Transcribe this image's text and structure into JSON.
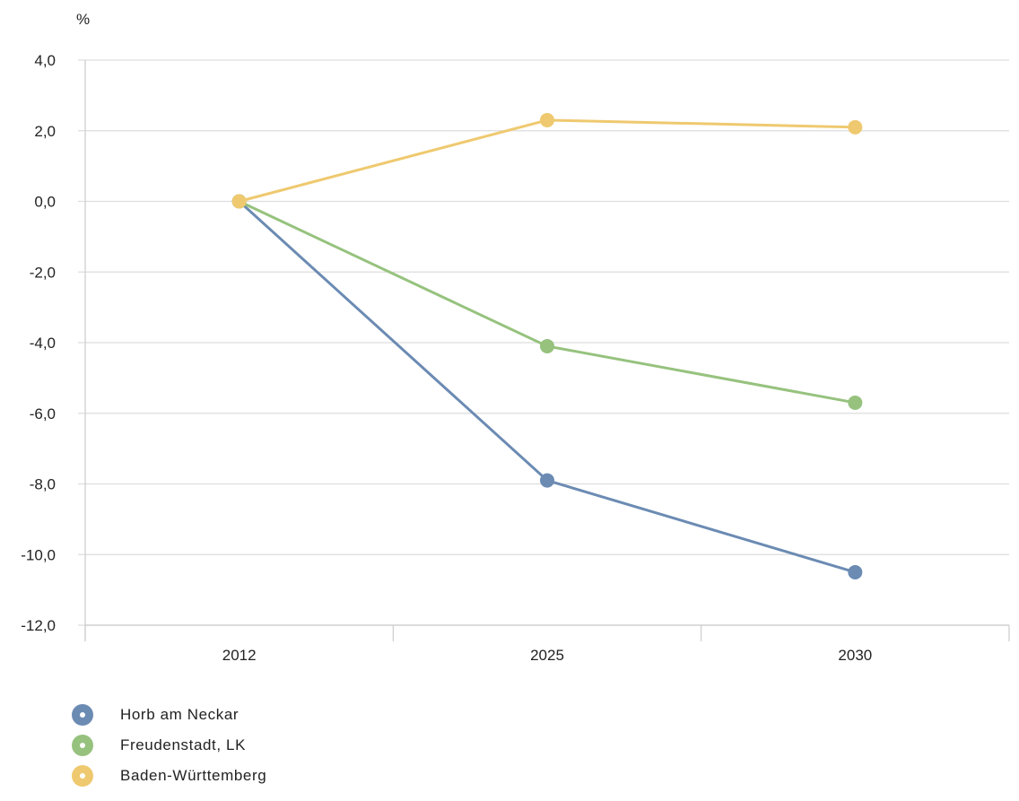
{
  "chart_data": {
    "type": "line",
    "unit_label": "%",
    "categories": [
      "2012",
      "2025",
      "2030"
    ],
    "y_ticks": [
      "4,0",
      "2,0",
      "0,0",
      "-2,0",
      "-4,0",
      "-6,0",
      "-8,0",
      "-10,0",
      "-12,0"
    ],
    "ylim": [
      -12,
      4
    ],
    "grid": true,
    "legend_position": "bottom-left",
    "series": [
      {
        "name": "Horb am Neckar",
        "color": "#6b8bb3",
        "values": [
          0,
          -7.9,
          -10.5
        ]
      },
      {
        "name": "Freudenstadt, LK",
        "color": "#96c27e",
        "values": [
          0,
          -4.1,
          -5.7
        ]
      },
      {
        "name": "Baden-Württemberg",
        "color": "#efc96f",
        "values": [
          0,
          2.3,
          2.1
        ]
      }
    ]
  }
}
